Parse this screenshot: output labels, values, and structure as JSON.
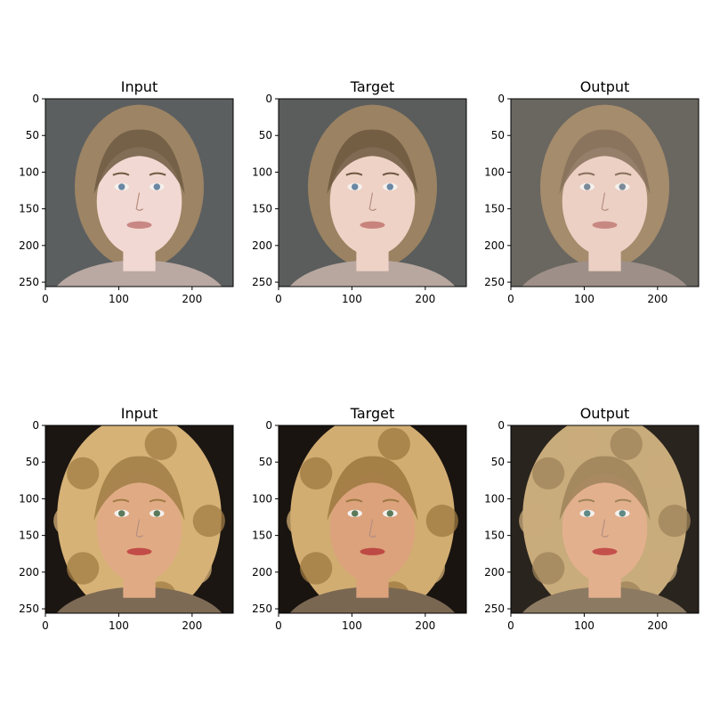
{
  "chart_data": [
    {
      "type": "image",
      "title": "Input",
      "xlim": [
        0,
        256
      ],
      "ylim": [
        256,
        0
      ],
      "xticks": [
        0,
        100,
        200
      ],
      "yticks": [
        0,
        50,
        100,
        150,
        200,
        250
      ],
      "scene": {
        "hair": "#9c8464",
        "hair_dark": "#6e5a42",
        "skin": "#f2d8d2",
        "bg": "#5c5f60",
        "lips": "#c98784",
        "eyes": "#6a87a3",
        "clothes": "#b9a9a2"
      }
    },
    {
      "type": "image",
      "title": "Target",
      "xlim": [
        0,
        256
      ],
      "ylim": [
        256,
        0
      ],
      "xticks": [
        0,
        100,
        200
      ],
      "yticks": [
        0,
        50,
        100,
        150,
        200,
        250
      ],
      "scene": {
        "hair": "#9a8262",
        "hair_dark": "#6c5840",
        "skin": "#efd2c6",
        "bg": "#5a5d5c",
        "lips": "#c8847c",
        "eyes": "#6a87a3",
        "clothes": "#b7a79e"
      }
    },
    {
      "type": "image",
      "title": "Output",
      "xlim": [
        0,
        256
      ],
      "ylim": [
        256,
        0
      ],
      "xticks": [
        0,
        100,
        200
      ],
      "yticks": [
        0,
        50,
        100,
        150,
        200,
        250
      ],
      "scene": {
        "hair": "#a48c6c",
        "hair_dark": "#86705a",
        "skin": "#ecd0c4",
        "bg": "#6a6660",
        "lips": "#c88882",
        "eyes": "#7b8a98",
        "clothes": "#9e9088"
      }
    },
    {
      "type": "image",
      "title": "Input",
      "xlim": [
        0,
        256
      ],
      "ylim": [
        256,
        0
      ],
      "xticks": [
        0,
        100,
        200
      ],
      "yticks": [
        0,
        50,
        100,
        150,
        200,
        250
      ],
      "scene": {
        "hair": "#d6b277",
        "hair_dark": "#a07c44",
        "skin": "#e0ab84",
        "bg": "#1c1612",
        "lips": "#c24c48",
        "eyes": "#5b7a5a",
        "clothes": "#7d6a55"
      }
    },
    {
      "type": "image",
      "title": "Target",
      "xlim": [
        0,
        256
      ],
      "ylim": [
        256,
        0
      ],
      "xticks": [
        0,
        100,
        200
      ],
      "yticks": [
        0,
        50,
        100,
        150,
        200,
        250
      ],
      "scene": {
        "hair": "#d2ad72",
        "hair_dark": "#9c7840",
        "skin": "#dba27c",
        "bg": "#1a1410",
        "lips": "#be4a44",
        "eyes": "#5b7a5a",
        "clothes": "#7a6752"
      }
    },
    {
      "type": "image",
      "title": "Output",
      "xlim": [
        0,
        256
      ],
      "ylim": [
        256,
        0
      ],
      "xticks": [
        0,
        100,
        200
      ],
      "yticks": [
        0,
        50,
        100,
        150,
        200,
        250
      ],
      "scene": {
        "hair": "#c9ac7c",
        "hair_dark": "#9e835a",
        "skin": "#e3b08e",
        "bg": "#2a241e",
        "lips": "#c4504c",
        "eyes": "#5f8a86",
        "clothes": "#8c7a62"
      }
    }
  ]
}
